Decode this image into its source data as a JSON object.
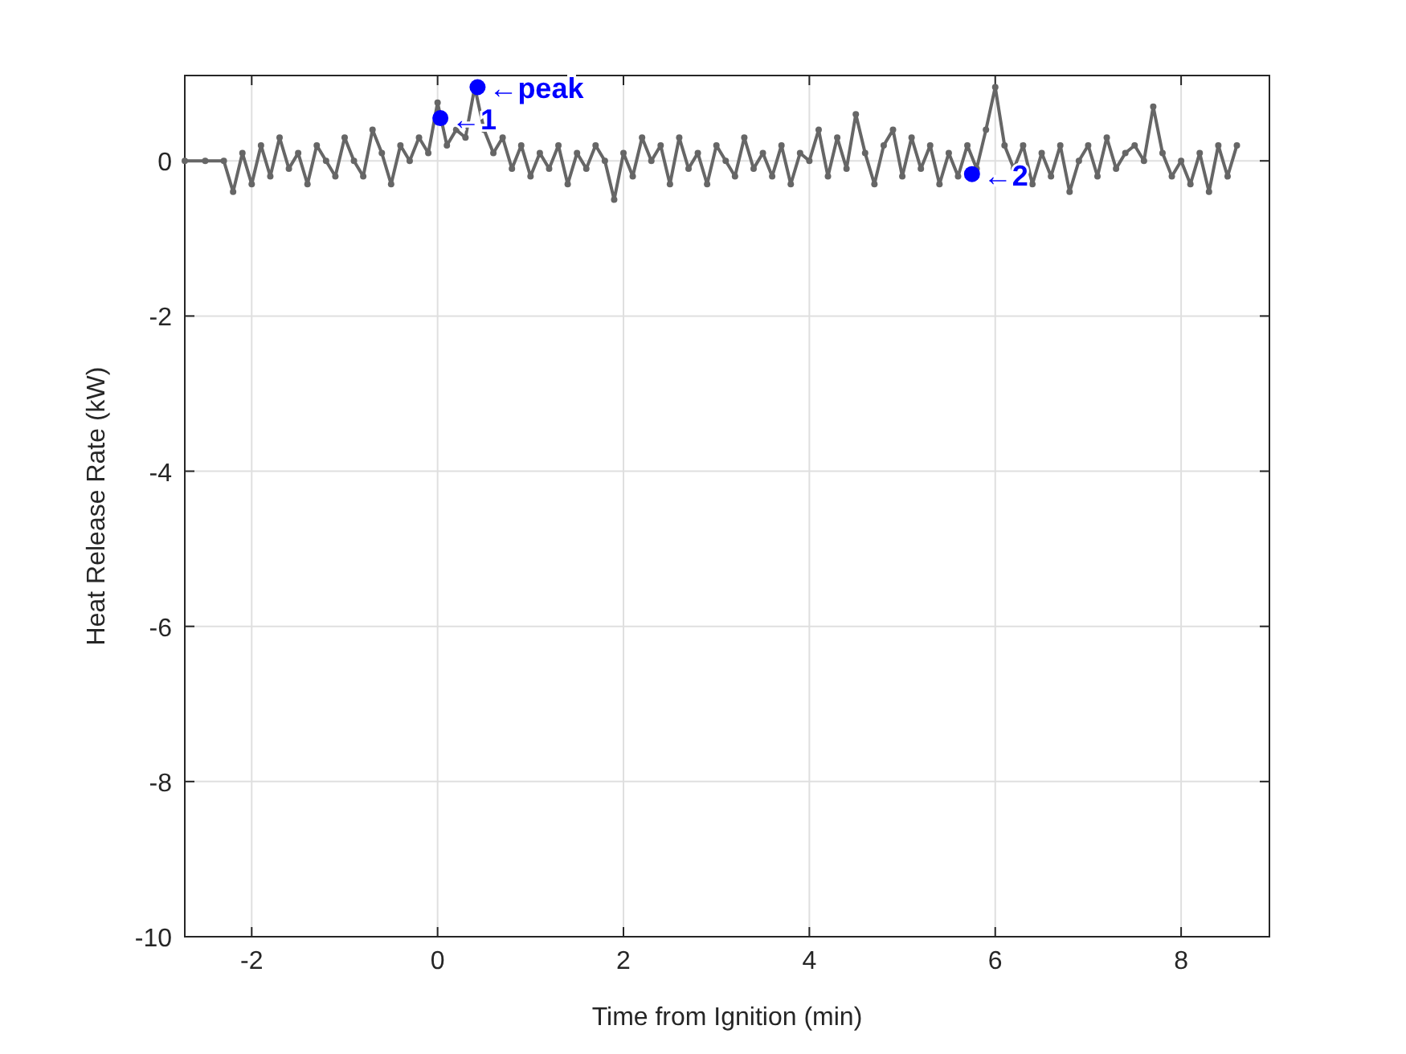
{
  "chart_data": {
    "type": "line",
    "xlabel": "Time from Ignition (min)",
    "ylabel": "Heat Release Rate (kW)",
    "xlim": [
      -2.72,
      8.95
    ],
    "ylim": [
      -10,
      1.1
    ],
    "xticks": [
      -2,
      0,
      2,
      4,
      6,
      8
    ],
    "yticks": [
      -10,
      -8,
      -6,
      -4,
      -2,
      0
    ],
    "grid": true,
    "marker": "circle",
    "line_style": "solid",
    "series": [
      {
        "color": "#666666",
        "x": [
          -2.72,
          -2.5,
          -2.3,
          -2.2,
          -2.1,
          -2.0,
          -1.9,
          -1.8,
          -1.7,
          -1.6,
          -1.5,
          -1.4,
          -1.3,
          -1.2,
          -1.1,
          -1.0,
          -0.9,
          -0.8,
          -0.7,
          -0.6,
          -0.5,
          -0.4,
          -0.3,
          -0.2,
          -0.1,
          0.0,
          0.1,
          0.2,
          0.3,
          0.4,
          0.5,
          0.6,
          0.7,
          0.8,
          0.9,
          1.0,
          1.1,
          1.2,
          1.3,
          1.4,
          1.5,
          1.6,
          1.7,
          1.8,
          1.9,
          2.0,
          2.1,
          2.2,
          2.3,
          2.4,
          2.5,
          2.6,
          2.7,
          2.8,
          2.9,
          3.0,
          3.1,
          3.2,
          3.3,
          3.4,
          3.5,
          3.6,
          3.7,
          3.8,
          3.9,
          4.0,
          4.1,
          4.2,
          4.3,
          4.4,
          4.5,
          4.6,
          4.7,
          4.8,
          4.9,
          5.0,
          5.1,
          5.2,
          5.3,
          5.4,
          5.5,
          5.6,
          5.7,
          5.8,
          5.9,
          6.0,
          6.1,
          6.2,
          6.3,
          6.4,
          6.5,
          6.6,
          6.7,
          6.8,
          6.9,
          7.0,
          7.1,
          7.2,
          7.3,
          7.4,
          7.5,
          7.6,
          7.7,
          7.8,
          7.9,
          8.0,
          8.1,
          8.2,
          8.3,
          8.4,
          8.5,
          8.6
        ],
        "values": [
          0,
          0,
          0,
          -0.4,
          0.1,
          -0.3,
          0.2,
          -0.2,
          0.3,
          -0.1,
          0.1,
          -0.3,
          0.2,
          0,
          -0.2,
          0.3,
          0,
          -0.2,
          0.4,
          0.1,
          -0.3,
          0.2,
          0,
          0.3,
          0.1,
          0.75,
          0.2,
          0.4,
          0.3,
          0.95,
          0.4,
          0.1,
          0.3,
          -0.1,
          0.2,
          -0.2,
          0.1,
          -0.1,
          0.2,
          -0.3,
          0.1,
          -0.1,
          0.2,
          0,
          -0.5,
          0.1,
          -0.2,
          0.3,
          0,
          0.2,
          -0.3,
          0.3,
          -0.1,
          0.1,
          -0.3,
          0.2,
          0,
          -0.2,
          0.3,
          -0.1,
          0.1,
          -0.2,
          0.2,
          -0.3,
          0.1,
          0,
          0.4,
          -0.2,
          0.3,
          -0.1,
          0.6,
          0.1,
          -0.3,
          0.2,
          0.4,
          -0.2,
          0.3,
          -0.1,
          0.2,
          -0.3,
          0.1,
          -0.2,
          0.2,
          -0.1,
          0.4,
          0.95,
          0.2,
          -0.1,
          0.2,
          -0.3,
          0.1,
          -0.2,
          0.2,
          -0.4,
          0,
          0.2,
          -0.2,
          0.3,
          -0.1,
          0.1,
          0.2,
          0,
          0.7,
          0.1,
          -0.2,
          0,
          -0.3,
          0.1,
          -0.4,
          0.2,
          -0.2,
          0.2
        ]
      },
      {
        "type": "scatter",
        "color": "#0000ff",
        "x": [
          0.03,
          0.43,
          5.75
        ],
        "values": [
          0.55,
          0.95,
          -0.17
        ]
      }
    ],
    "annotations": [
      {
        "text": "←1",
        "x": 0.03,
        "y": 0.55
      },
      {
        "text": "←peak",
        "x": 0.43,
        "y": 0.95
      },
      {
        "text": "←2",
        "x": 5.75,
        "y": -0.17
      }
    ]
  }
}
